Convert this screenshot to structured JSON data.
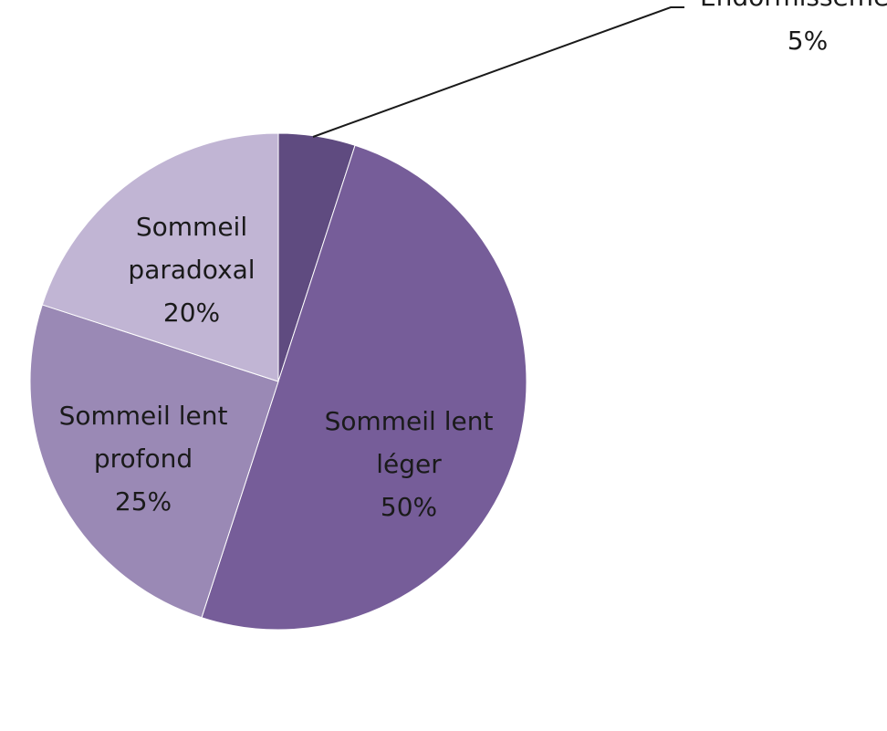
{
  "chart_data": {
    "type": "pie",
    "categories": [
      "Endormissement",
      "Sommeil lent léger",
      "Sommeil lent profond",
      "Sommeil paradoxal"
    ],
    "values": [
      5,
      50,
      25,
      20
    ],
    "value_labels": [
      "5%",
      "50%",
      "25%",
      "20%"
    ],
    "colors": [
      "#5f4b80",
      "#765d99",
      "#9a89b5",
      "#c1b5d4"
    ]
  }
}
